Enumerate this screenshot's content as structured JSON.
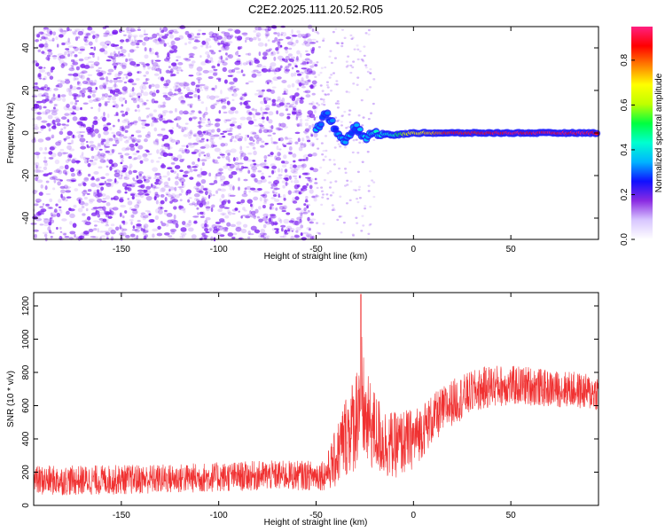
{
  "title": "C2E2.2025.111.20.52.R05",
  "colors": {
    "snr_line": "#f03030",
    "noise_speckle": "#7a1cf0",
    "colormap": [
      "#ffffff",
      "#d8c6ff",
      "#8a2be2",
      "#1010ff",
      "#00b4ff",
      "#00ffd0",
      "#00ff40",
      "#c0ff00",
      "#ffff00",
      "#ff8000",
      "#ff0000",
      "#ff2080"
    ]
  },
  "chart_data": [
    {
      "type": "heatmap",
      "xlabel": "Height of straight line (km)",
      "ylabel": "Frequency (Hz)",
      "xlim": [
        -195,
        95
      ],
      "ylim": [
        -50,
        50
      ],
      "xticks": [
        -150,
        -100,
        -50,
        0,
        50
      ],
      "yticks": [
        -40,
        -20,
        0,
        20,
        40
      ],
      "colorbar": {
        "label": "Normalized spectral amplitude",
        "range": [
          0,
          0.95
        ],
        "ticks": [
          0.0,
          0.2,
          0.4,
          0.6,
          0.8
        ]
      },
      "noise_region": {
        "x": [
          -195,
          -50
        ],
        "y": [
          -50,
          50
        ]
      },
      "signal_trace": [
        {
          "x": -50,
          "y": 1,
          "amp": 0.35
        },
        {
          "x": -45,
          "y": 10,
          "amp": 0.3
        },
        {
          "x": -40,
          "y": 2,
          "amp": 0.3
        },
        {
          "x": -35,
          "y": -5,
          "amp": 0.35
        },
        {
          "x": -30,
          "y": 3,
          "amp": 0.3
        },
        {
          "x": -25,
          "y": -2,
          "amp": 0.35
        },
        {
          "x": -20,
          "y": 0,
          "amp": 0.4
        },
        {
          "x": -10,
          "y": -1,
          "amp": 0.45
        },
        {
          "x": 0,
          "y": 0,
          "amp": 0.7
        },
        {
          "x": 10,
          "y": 0,
          "amp": 0.75
        },
        {
          "x": 20,
          "y": 0,
          "amp": 0.85
        },
        {
          "x": 50,
          "y": 0,
          "amp": 0.9
        },
        {
          "x": 95,
          "y": 0,
          "amp": 0.9
        }
      ]
    },
    {
      "type": "line",
      "xlabel": "Height of straight line (km)",
      "ylabel": "SNR (10 * v/v)",
      "xlim": [
        -195,
        95
      ],
      "ylim": [
        0,
        1280
      ],
      "xticks": [
        -150,
        -100,
        -50,
        0,
        50
      ],
      "yticks": [
        0,
        200,
        400,
        600,
        800,
        1000,
        1200
      ],
      "series": [
        {
          "x": [
            -195,
            -175,
            -150,
            -125,
            -100,
            -75,
            -50,
            -45,
            -40,
            -35,
            -30,
            -27,
            -25,
            -20,
            -15,
            -10,
            -5,
            0,
            10,
            20,
            30,
            40,
            50,
            60,
            70,
            80,
            90,
            95
          ],
          "mean": [
            150,
            150,
            155,
            160,
            170,
            180,
            180,
            190,
            280,
            420,
            500,
            700,
            520,
            450,
            380,
            360,
            380,
            400,
            520,
            620,
            680,
            720,
            720,
            720,
            700,
            700,
            680,
            680
          ],
          "spread": [
            90,
            90,
            90,
            90,
            90,
            90,
            90,
            100,
            180,
            250,
            300,
            400,
            300,
            250,
            220,
            200,
            200,
            180,
            150,
            140,
            130,
            130,
            120,
            120,
            110,
            110,
            110,
            110
          ]
        }
      ]
    }
  ]
}
